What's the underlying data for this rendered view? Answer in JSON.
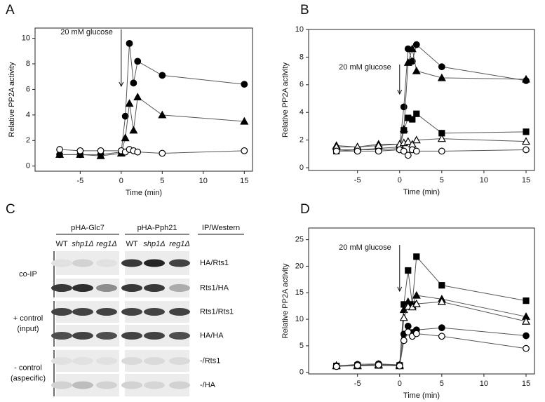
{
  "chart_data": [
    {
      "type": "line",
      "label": "A",
      "xlabel": "Time (min)",
      "ylabel": "Relative PP2A activity",
      "annotation": "20 mM glucose",
      "x": [
        -7.5,
        -5,
        -2.5,
        0,
        0.5,
        1,
        1.5,
        2,
        5,
        15
      ],
      "xlim": [
        -10.5,
        16
      ],
      "ylim": [
        -0.4,
        10.8
      ],
      "xticks": [
        -5,
        0,
        5,
        10,
        15
      ],
      "yticks": [
        0,
        2,
        4,
        6,
        8,
        10
      ],
      "series": [
        {
          "color": "#000000",
          "marker": "circle-filled",
          "values": [
            0.9,
            0.9,
            0.9,
            1.1,
            3.9,
            9.6,
            6.5,
            8.2,
            7.1,
            6.4
          ]
        },
        {
          "color": "#000000",
          "marker": "triangle-filled",
          "values": [
            0.9,
            0.9,
            0.8,
            1.0,
            2.2,
            4.9,
            2.8,
            5.4,
            4.0,
            3.5
          ]
        },
        {
          "color": "#000000",
          "marker": "circle-open",
          "values": [
            1.3,
            1.2,
            1.2,
            1.2,
            1.1,
            1.3,
            1.2,
            1.1,
            1.0,
            1.2
          ]
        }
      ]
    },
    {
      "type": "line",
      "label": "B",
      "xlabel": "Time (min)",
      "ylabel": "Relative PP2A activity",
      "annotation": "20 mM glucose",
      "x": [
        -7.5,
        -5,
        -2.5,
        0,
        0.5,
        1,
        1.5,
        2,
        5,
        15
      ],
      "xlim": [
        -10.8,
        16
      ],
      "ylim": [
        -0.2,
        10
      ],
      "xticks": [
        -5,
        0,
        5,
        10,
        15
      ],
      "yticks": [
        0,
        2,
        4,
        6,
        8,
        10
      ],
      "series": [
        {
          "color": "#000000",
          "marker": "circle-filled",
          "values": [
            1.3,
            1.3,
            1.4,
            1.5,
            4.4,
            8.6,
            7.7,
            8.9,
            7.3,
            6.3
          ]
        },
        {
          "color": "#000000",
          "marker": "triangle-filled",
          "values": [
            1.6,
            1.5,
            1.7,
            1.7,
            2.8,
            7.6,
            8.6,
            7.0,
            6.5,
            6.4
          ]
        },
        {
          "color": "#000000",
          "marker": "square-filled",
          "values": [
            1.2,
            1.3,
            1.3,
            1.4,
            2.7,
            3.6,
            3.5,
            3.9,
            2.5,
            2.6
          ]
        },
        {
          "color": "#000000",
          "marker": "triangle-open",
          "values": [
            1.5,
            1.5,
            1.6,
            1.7,
            1.8,
            1.9,
            1.7,
            2.0,
            2.1,
            1.9
          ]
        },
        {
          "color": "#000000",
          "marker": "circle-open",
          "values": [
            1.2,
            1.2,
            1.2,
            1.3,
            1.2,
            0.9,
            1.3,
            1.2,
            1.2,
            1.3
          ]
        }
      ]
    },
    {
      "type": "line",
      "label": "D",
      "xlabel": "Time (min)",
      "ylabel": "Relative PP2A activity",
      "annotation": "20 mM glucose",
      "x": [
        -7.5,
        -5,
        -2.5,
        0,
        0.5,
        1,
        1.5,
        2,
        5,
        15
      ],
      "xlim": [
        -10.8,
        16
      ],
      "ylim": [
        -0.3,
        27.2
      ],
      "xticks": [
        -5,
        0,
        5,
        10,
        15
      ],
      "yticks": [
        0,
        5,
        10,
        15,
        20,
        25
      ],
      "series": [
        {
          "color": "#000000",
          "marker": "square-filled",
          "values": [
            1.2,
            1.3,
            1.3,
            1.3,
            12.8,
            19.2,
            12.8,
            21.8,
            16.4,
            13.5
          ]
        },
        {
          "color": "#000000",
          "marker": "triangle-filled",
          "values": [
            1.3,
            1.3,
            1.5,
            1.4,
            11.8,
            13.3,
            12.6,
            14.5,
            13.8,
            10.5
          ]
        },
        {
          "color": "#000000",
          "marker": "triangle-open",
          "values": [
            1.2,
            1.2,
            1.3,
            1.2,
            10.3,
            12.4,
            12.3,
            12.9,
            13.3,
            9.6
          ]
        },
        {
          "color": "#000000",
          "marker": "circle-filled",
          "values": [
            1.2,
            1.5,
            1.6,
            1.4,
            7.2,
            8.7,
            7.5,
            8.0,
            8.4,
            6.9
          ]
        },
        {
          "color": "#000000",
          "marker": "circle-open",
          "values": [
            1.1,
            1.3,
            1.4,
            1.2,
            6.0,
            7.6,
            6.8,
            7.3,
            6.8,
            4.5
          ]
        }
      ]
    }
  ],
  "blot": {
    "label": "C",
    "method_header": "IP/Western",
    "groups": [
      {
        "name": "pHA-Glc7",
        "lanes": [
          "WT",
          "shp1Δ",
          "reg1Δ"
        ]
      },
      {
        "name": "pHA-Pph21",
        "lanes": [
          "WT",
          "shp1Δ",
          "reg1Δ"
        ]
      }
    ],
    "sections": [
      {
        "label": [
          "co-IP"
        ],
        "rows": [
          "HA/Rts1",
          "Rts1/HA"
        ]
      },
      {
        "label": [
          "+ control",
          "(input)"
        ],
        "rows": [
          "Rts1/Rts1",
          "HA/HA"
        ]
      },
      {
        "label": [
          "- control",
          "(aspecific)"
        ],
        "rows": [
          "-/Rts1",
          "-/HA"
        ]
      }
    ]
  }
}
